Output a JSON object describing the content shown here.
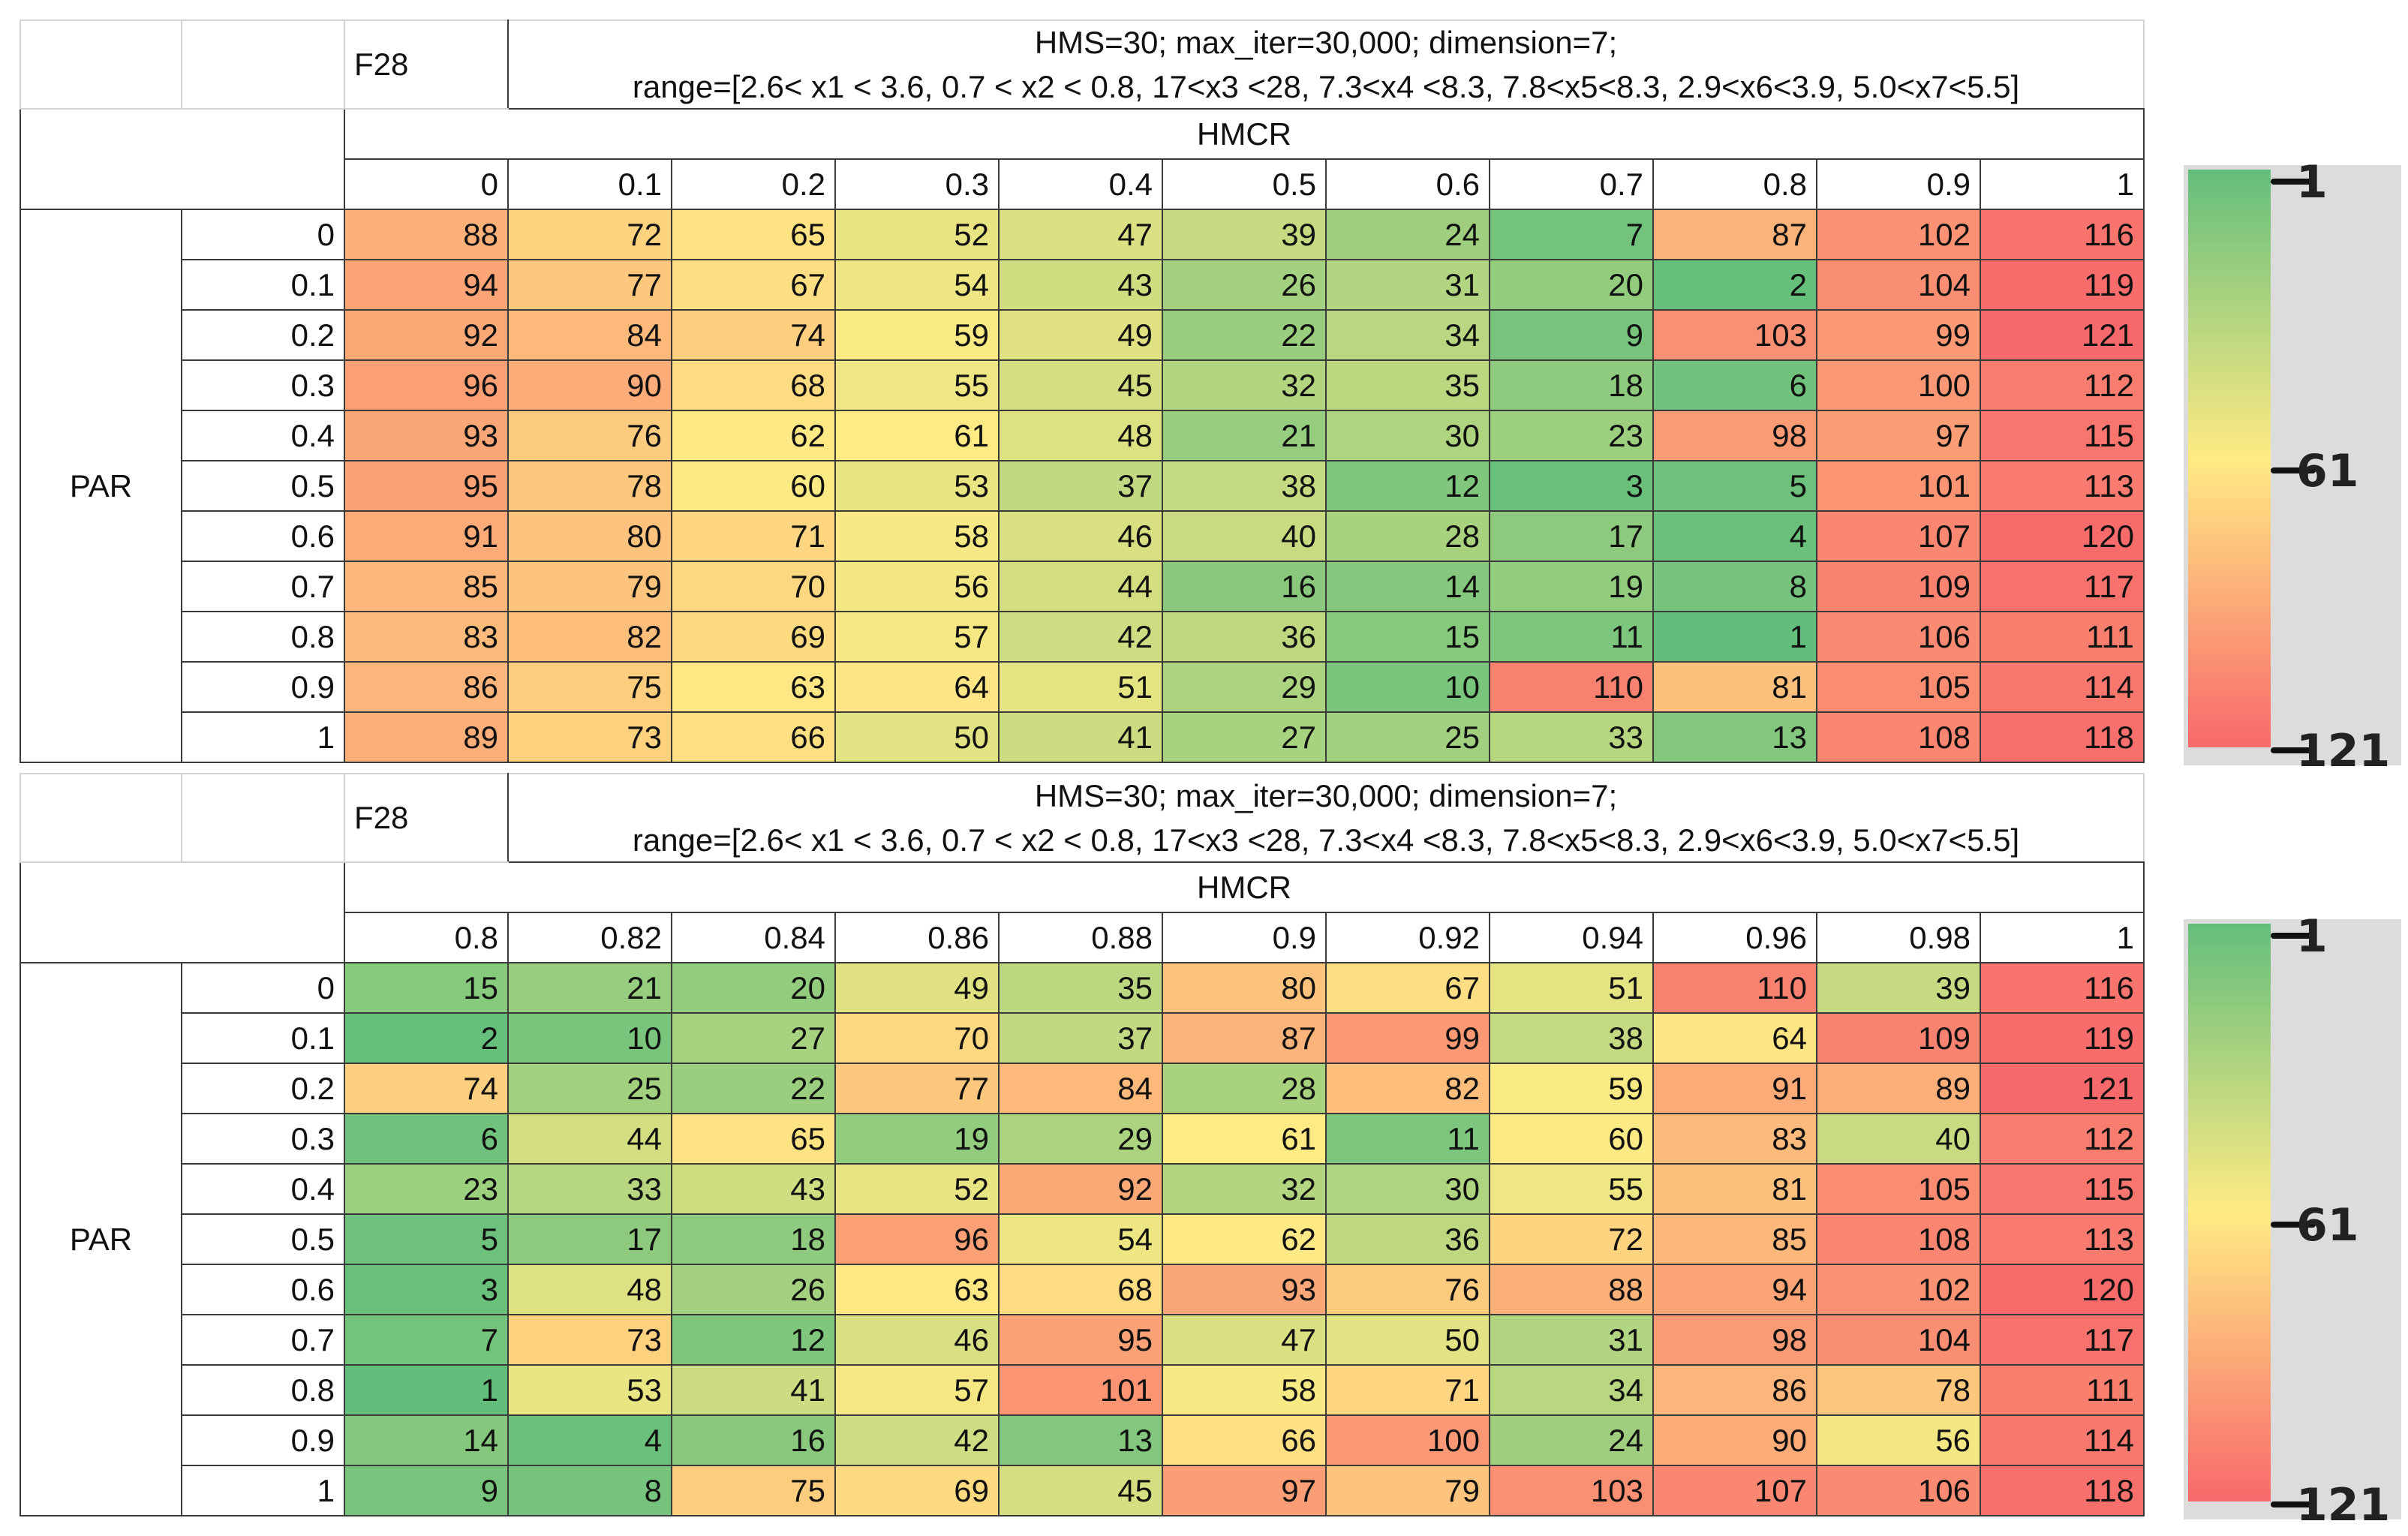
{
  "chart_data": [
    {
      "type": "heatmap",
      "title": "F28",
      "title_line": "HMS=30; max_iter=30,000; dimension=7;",
      "range_line": "range=[2.6< x1  < 3.6, 0.7 < x2  < 0.8, 17<x3  <28, 7.3<x4  <8.3,   7.8<x5<8.3, 2.9<x6<3.9, 5.0<x7<5.5]",
      "row_label": "PAR",
      "col_label": "HMCR",
      "columns": [
        "0",
        "0.1",
        "0.2",
        "0.3",
        "0.4",
        "0.5",
        "0.6",
        "0.7",
        "0.8",
        "0.9",
        "1"
      ],
      "rows": [
        "0",
        "0.1",
        "0.2",
        "0.3",
        "0.4",
        "0.5",
        "0.6",
        "0.7",
        "0.8",
        "0.9",
        "1"
      ],
      "values": [
        [
          88,
          72,
          65,
          52,
          47,
          39,
          24,
          7,
          87,
          102,
          116
        ],
        [
          94,
          77,
          67,
          54,
          43,
          26,
          31,
          20,
          2,
          104,
          119
        ],
        [
          92,
          84,
          74,
          59,
          49,
          22,
          34,
          9,
          103,
          99,
          121
        ],
        [
          96,
          90,
          68,
          55,
          45,
          32,
          35,
          18,
          6,
          100,
          112
        ],
        [
          93,
          76,
          62,
          61,
          48,
          21,
          30,
          23,
          98,
          97,
          115
        ],
        [
          95,
          78,
          60,
          53,
          37,
          38,
          12,
          3,
          5,
          101,
          113
        ],
        [
          91,
          80,
          71,
          58,
          46,
          40,
          28,
          17,
          4,
          107,
          120
        ],
        [
          85,
          79,
          70,
          56,
          44,
          16,
          14,
          19,
          8,
          109,
          117
        ],
        [
          83,
          82,
          69,
          57,
          42,
          36,
          15,
          11,
          1,
          106,
          111
        ],
        [
          86,
          75,
          63,
          64,
          51,
          29,
          10,
          110,
          81,
          105,
          114
        ],
        [
          89,
          73,
          66,
          50,
          41,
          27,
          25,
          33,
          13,
          108,
          118
        ]
      ],
      "color_scale": {
        "min": 1,
        "mid": 61,
        "max": 121,
        "min_color": "#63be7b",
        "mid_color": "#ffeb84",
        "max_color": "#f8696b"
      },
      "scale_labels": [
        "1",
        "61",
        "121"
      ]
    },
    {
      "type": "heatmap",
      "title": "F28",
      "title_line": "HMS=30; max_iter=30,000; dimension=7;",
      "range_line": "range=[2.6< x1  < 3.6, 0.7 < x2  < 0.8, 17<x3  <28, 7.3<x4  <8.3,   7.8<x5<8.3, 2.9<x6<3.9, 5.0<x7<5.5]",
      "row_label": "PAR",
      "col_label": "HMCR",
      "columns": [
        "0.8",
        "0.82",
        "0.84",
        "0.86",
        "0.88",
        "0.9",
        "0.92",
        "0.94",
        "0.96",
        "0.98",
        "1"
      ],
      "rows": [
        "0",
        "0.1",
        "0.2",
        "0.3",
        "0.4",
        "0.5",
        "0.6",
        "0.7",
        "0.8",
        "0.9",
        "1"
      ],
      "values": [
        [
          15,
          21,
          20,
          49,
          35,
          80,
          67,
          51,
          110,
          39,
          116
        ],
        [
          2,
          10,
          27,
          70,
          37,
          87,
          99,
          38,
          64,
          109,
          119
        ],
        [
          74,
          25,
          22,
          77,
          84,
          28,
          82,
          59,
          91,
          89,
          121
        ],
        [
          6,
          44,
          65,
          19,
          29,
          61,
          11,
          60,
          83,
          40,
          112
        ],
        [
          23,
          33,
          43,
          52,
          92,
          32,
          30,
          55,
          81,
          105,
          115
        ],
        [
          5,
          17,
          18,
          96,
          54,
          62,
          36,
          72,
          85,
          108,
          113
        ],
        [
          3,
          48,
          26,
          63,
          68,
          93,
          76,
          88,
          94,
          102,
          120
        ],
        [
          7,
          73,
          12,
          46,
          95,
          47,
          50,
          31,
          98,
          104,
          117
        ],
        [
          1,
          53,
          41,
          57,
          101,
          58,
          71,
          34,
          86,
          78,
          111
        ],
        [
          14,
          4,
          16,
          42,
          13,
          66,
          100,
          24,
          90,
          56,
          114
        ],
        [
          9,
          8,
          75,
          69,
          45,
          97,
          79,
          103,
          107,
          106,
          118
        ]
      ],
      "color_scale": {
        "min": 1,
        "mid": 61,
        "max": 121,
        "min_color": "#63be7b",
        "mid_color": "#ffeb84",
        "max_color": "#f8696b"
      },
      "scale_labels": [
        "1",
        "61",
        "121"
      ]
    }
  ]
}
